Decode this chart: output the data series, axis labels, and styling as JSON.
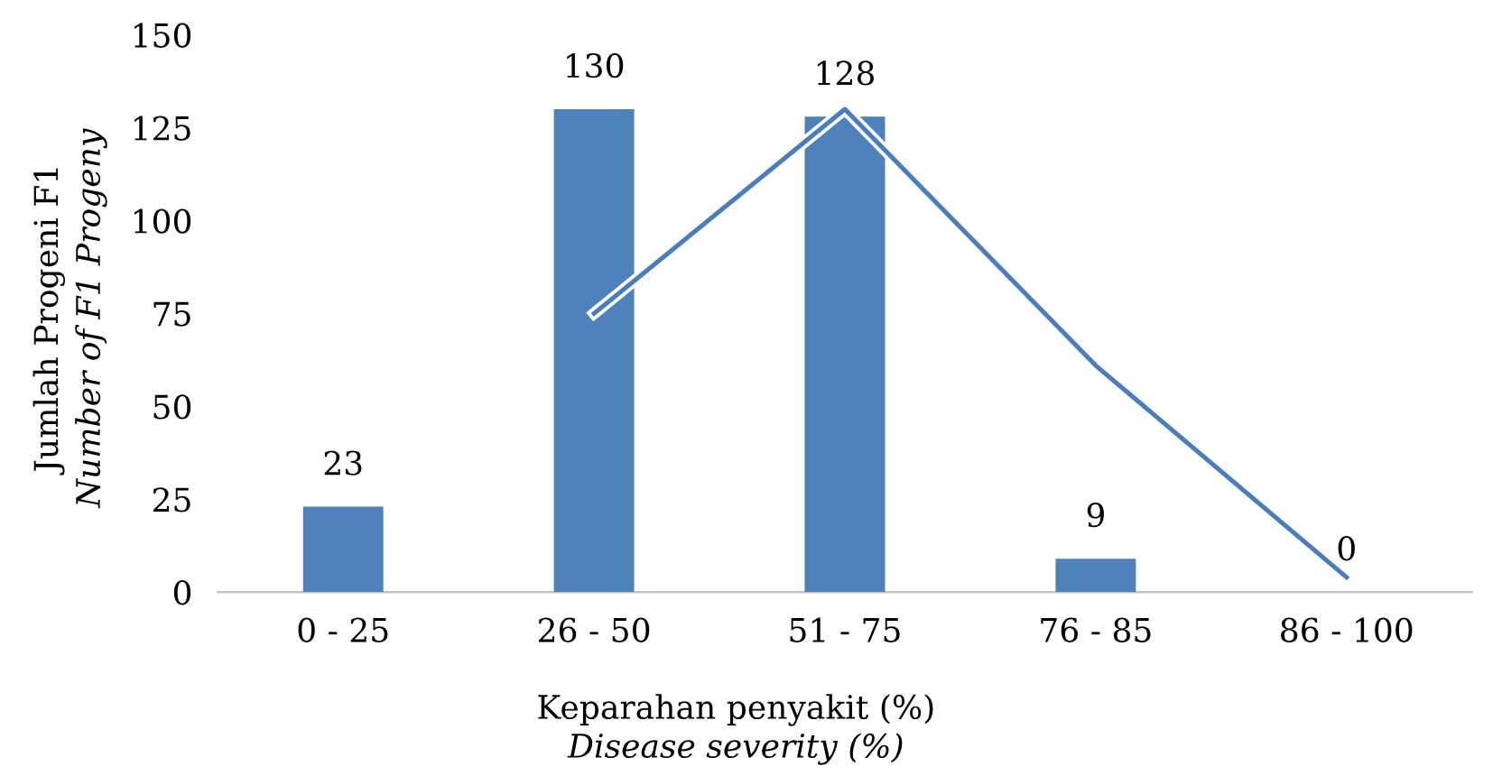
{
  "chart_data": {
    "type": "bar",
    "categories": [
      "0 - 25",
      "26 - 50",
      "51 - 75",
      "76 - 85",
      "86 - 100"
    ],
    "xlabel": "Keparahan penyakit (%)\nDisease severity (%)",
    "ylabel": "Jumlah Progeni F1\nNumber of F1 Progeny",
    "ylim": [
      0,
      150
    ],
    "yticks": [
      0,
      25,
      50,
      75,
      100,
      125,
      150
    ],
    "grid": false,
    "legend": false,
    "series": [
      {
        "color": "#4f81bd",
        "values": [
          23,
          130,
          128,
          9,
          0
        ],
        "data_labels": true
      },
      {
        "type": "line",
        "color": "#4a7ebb",
        "values": [
          null,
          75,
          130,
          61,
          4
        ],
        "marker": "none"
      }
    ]
  }
}
